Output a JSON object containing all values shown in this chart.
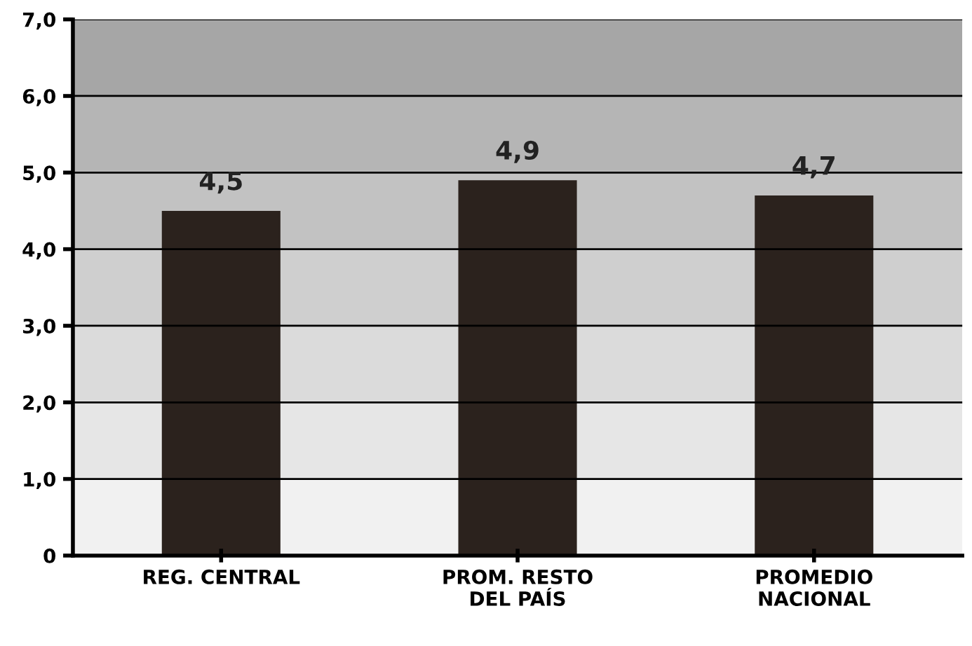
{
  "chart_data": {
    "type": "bar",
    "categories": [
      "REG. CENTRAL",
      "PROM. RESTO\nDEL PAÍS",
      "PROMEDIO\nNACIONAL"
    ],
    "values": [
      4.5,
      4.9,
      4.7
    ],
    "value_labels": [
      "4,5",
      "4,9",
      "4,7"
    ],
    "color": "#2b221d",
    "ylim": [
      0,
      7
    ],
    "yticks": [
      0,
      {
        "value": 1,
        "label": "1,0"
      },
      {
        "value": 2,
        "label": "2,0"
      },
      {
        "value": 3,
        "label": "3,0"
      },
      {
        "value": 4,
        "label": "4,0"
      },
      {
        "value": 5,
        "label": "5,0"
      },
      {
        "value": 6,
        "label": "6,0"
      },
      {
        "value": 7,
        "label": "7,0"
      }
    ],
    "grid": "y",
    "bands": [
      {
        "axis": "y",
        "from": 0,
        "to": 1,
        "color": "#f1f1f1"
      },
      {
        "axis": "y",
        "from": 1,
        "to": 2,
        "color": "#e6e6e6"
      },
      {
        "axis": "y",
        "from": 2,
        "to": 3,
        "color": "#dbdbdb"
      },
      {
        "axis": "y",
        "from": 3,
        "to": 4,
        "color": "#cfcfcf"
      },
      {
        "axis": "y",
        "from": 4,
        "to": 5,
        "color": "#c2c2c2"
      },
      {
        "axis": "y",
        "from": 5,
        "to": 6,
        "color": "#b5b5b5"
      },
      {
        "axis": "y",
        "from": 6,
        "to": 7,
        "color": "#a6a6a6"
      }
    ]
  }
}
